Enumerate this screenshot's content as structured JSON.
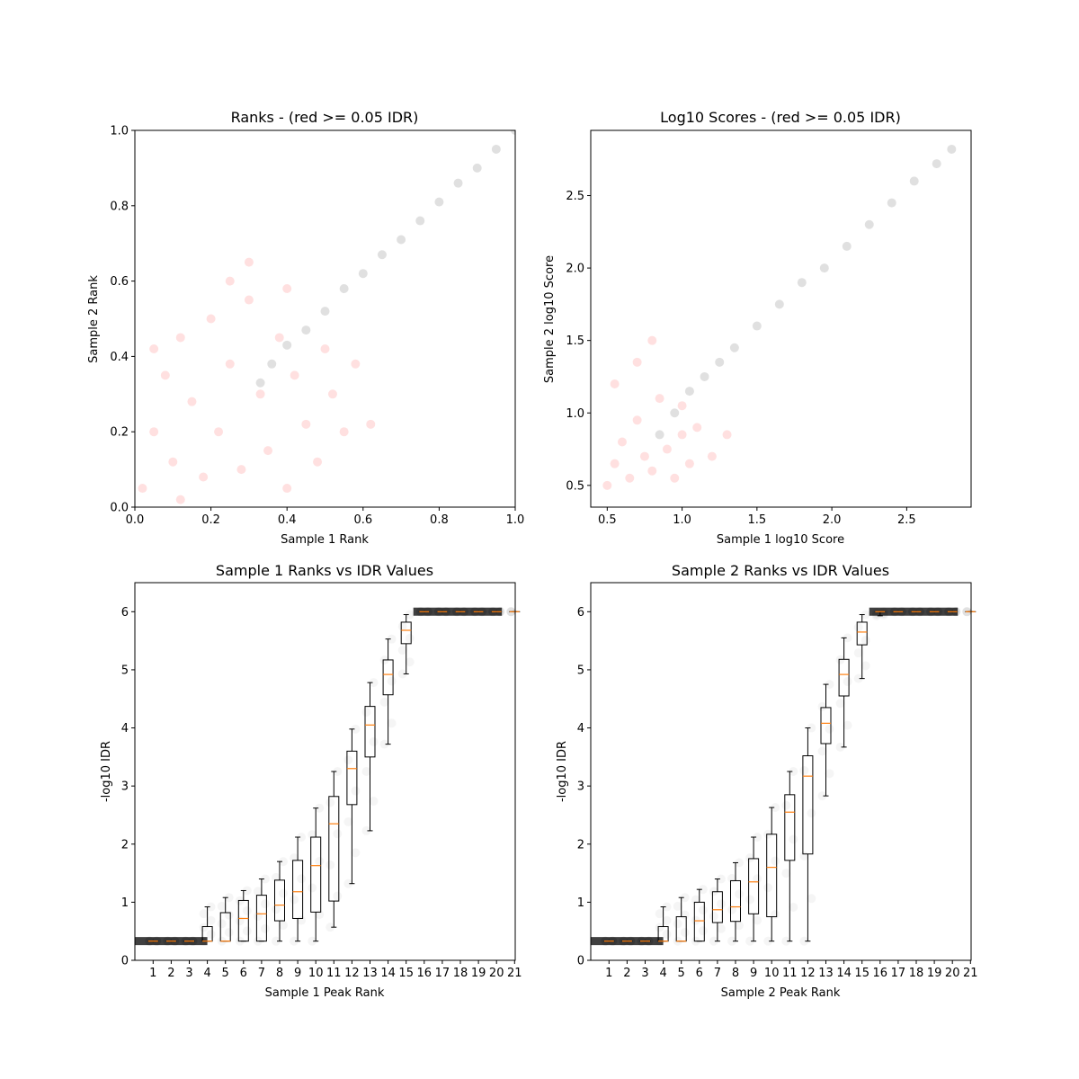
{
  "chart_data": [
    {
      "type": "scatter",
      "title": "Ranks - (red >= 0.05 IDR)",
      "xlabel": "Sample 1 Rank",
      "ylabel": "Sample 2 Rank",
      "xlim": [
        0,
        1
      ],
      "ylim": [
        0,
        1
      ],
      "xticks": [
        0.0,
        0.2,
        0.4,
        0.6,
        0.8,
        1.0
      ],
      "yticks": [
        0.0,
        0.2,
        0.4,
        0.6,
        0.8,
        1.0
      ],
      "tick_labels_x": [
        "0.0",
        "0.2",
        "0.4",
        "0.6",
        "0.8",
        "1.0"
      ],
      "tick_labels_y": [
        "0.0",
        "0.2",
        "0.4",
        "0.6",
        "0.8",
        "1.0"
      ],
      "grid": false,
      "series_colors": {
        "red_points": "#ff0000",
        "black_points": "#000000"
      },
      "series": [
        {
          "color": "#ff0000",
          "points": [
            [
              0.02,
              0.05
            ],
            [
              0.05,
              0.2
            ],
            [
              0.08,
              0.35
            ],
            [
              0.1,
              0.12
            ],
            [
              0.12,
              0.45
            ],
            [
              0.15,
              0.28
            ],
            [
              0.18,
              0.08
            ],
            [
              0.2,
              0.5
            ],
            [
              0.22,
              0.2
            ],
            [
              0.25,
              0.38
            ],
            [
              0.28,
              0.1
            ],
            [
              0.3,
              0.55
            ],
            [
              0.33,
              0.3
            ],
            [
              0.35,
              0.15
            ],
            [
              0.38,
              0.45
            ],
            [
              0.4,
              0.05
            ],
            [
              0.42,
              0.35
            ],
            [
              0.45,
              0.22
            ],
            [
              0.48,
              0.12
            ],
            [
              0.5,
              0.42
            ],
            [
              0.52,
              0.3
            ],
            [
              0.55,
              0.2
            ],
            [
              0.58,
              0.38
            ],
            [
              0.62,
              0.22
            ],
            [
              0.05,
              0.42
            ],
            [
              0.12,
              0.02
            ],
            [
              0.25,
              0.6
            ],
            [
              0.3,
              0.65
            ],
            [
              0.4,
              0.58
            ]
          ]
        },
        {
          "color": "#000000",
          "points": [
            [
              0.33,
              0.33
            ],
            [
              0.36,
              0.38
            ],
            [
              0.4,
              0.43
            ],
            [
              0.45,
              0.47
            ],
            [
              0.5,
              0.52
            ],
            [
              0.55,
              0.58
            ],
            [
              0.6,
              0.62
            ],
            [
              0.65,
              0.67
            ],
            [
              0.7,
              0.71
            ],
            [
              0.75,
              0.76
            ],
            [
              0.8,
              0.81
            ],
            [
              0.85,
              0.86
            ],
            [
              0.9,
              0.9
            ],
            [
              0.95,
              0.95
            ],
            [
              1.0,
              1.0
            ]
          ]
        }
      ]
    },
    {
      "type": "scatter",
      "title": "Log10 Scores - (red >= 0.05 IDR)",
      "xlabel": "Sample 1 log10 Score",
      "ylabel": "Sample 2 log10 Score",
      "xlim": [
        0.39,
        2.93
      ],
      "ylim": [
        0.35,
        2.95
      ],
      "xticks": [
        0.5,
        1.0,
        1.5,
        2.0,
        2.5
      ],
      "yticks": [
        0.5,
        1.0,
        1.5,
        2.0,
        2.5
      ],
      "tick_labels_x": [
        "0.5",
        "1.0",
        "1.5",
        "2.0",
        "2.5"
      ],
      "tick_labels_y": [
        "0.5",
        "1.0",
        "1.5",
        "2.0",
        "2.5"
      ],
      "grid": false,
      "series_colors": {
        "red_points": "#ff0000",
        "black_points": "#000000"
      },
      "series": [
        {
          "color": "#ff0000",
          "points": [
            [
              0.5,
              0.5
            ],
            [
              0.55,
              0.65
            ],
            [
              0.6,
              0.8
            ],
            [
              0.65,
              0.55
            ],
            [
              0.7,
              0.95
            ],
            [
              0.75,
              0.7
            ],
            [
              0.8,
              0.6
            ],
            [
              0.85,
              1.1
            ],
            [
              0.9,
              0.75
            ],
            [
              0.95,
              0.55
            ],
            [
              1.0,
              0.85
            ],
            [
              1.05,
              0.65
            ],
            [
              1.1,
              0.9
            ],
            [
              1.2,
              0.7
            ],
            [
              1.3,
              0.85
            ],
            [
              0.55,
              1.2
            ],
            [
              0.7,
              1.35
            ],
            [
              0.8,
              1.5
            ],
            [
              1.0,
              1.05
            ]
          ]
        },
        {
          "color": "#000000",
          "points": [
            [
              0.85,
              0.85
            ],
            [
              0.95,
              1.0
            ],
            [
              1.05,
              1.15
            ],
            [
              1.15,
              1.25
            ],
            [
              1.25,
              1.35
            ],
            [
              1.35,
              1.45
            ],
            [
              1.5,
              1.6
            ],
            [
              1.65,
              1.75
            ],
            [
              1.8,
              1.9
            ],
            [
              1.95,
              2.0
            ],
            [
              2.1,
              2.15
            ],
            [
              2.25,
              2.3
            ],
            [
              2.4,
              2.45
            ],
            [
              2.55,
              2.6
            ],
            [
              2.7,
              2.72
            ],
            [
              2.8,
              2.82
            ]
          ]
        }
      ]
    },
    {
      "type": "box",
      "title": "Sample 1 Ranks vs IDR Values",
      "xlabel": "Sample 1 Peak Rank",
      "ylabel": "-log10 IDR",
      "xlim": [
        0,
        21
      ],
      "ylim": [
        0,
        6.5
      ],
      "xticks": [
        "1",
        "2",
        "3",
        "4",
        "5",
        "6",
        "7",
        "8",
        "9",
        "10",
        "11",
        "12",
        "13",
        "14",
        "15",
        "16",
        "17",
        "18",
        "19",
        "20",
        "21"
      ],
      "yticks": [
        0,
        1,
        2,
        3,
        4,
        5,
        6
      ],
      "tick_labels_y": [
        "0",
        "1",
        "2",
        "3",
        "4",
        "5",
        "6"
      ],
      "grid": false,
      "boxes": [
        {
          "x": 1,
          "whislo": 0.33,
          "q1": 0.33,
          "med": 0.33,
          "q3": 0.33,
          "whishi": 0.33
        },
        {
          "x": 2,
          "whislo": 0.33,
          "q1": 0.33,
          "med": 0.33,
          "q3": 0.33,
          "whishi": 0.33
        },
        {
          "x": 3,
          "whislo": 0.33,
          "q1": 0.33,
          "med": 0.33,
          "q3": 0.33,
          "whishi": 0.33
        },
        {
          "x": 4,
          "whislo": 0.33,
          "q1": 0.33,
          "med": 0.33,
          "q3": 0.58,
          "whishi": 0.92
        },
        {
          "x": 5,
          "whislo": 0.33,
          "q1": 0.33,
          "med": 0.33,
          "q3": 0.82,
          "whishi": 1.08
        },
        {
          "x": 6,
          "whislo": 0.33,
          "q1": 0.33,
          "med": 0.72,
          "q3": 1.03,
          "whishi": 1.2
        },
        {
          "x": 7,
          "whislo": 0.33,
          "q1": 0.33,
          "med": 0.8,
          "q3": 1.12,
          "whishi": 1.4
        },
        {
          "x": 8,
          "whislo": 0.33,
          "q1": 0.68,
          "med": 0.95,
          "q3": 1.38,
          "whishi": 1.7
        },
        {
          "x": 9,
          "whislo": 0.33,
          "q1": 0.72,
          "med": 1.18,
          "q3": 1.72,
          "whishi": 2.12
        },
        {
          "x": 10,
          "whislo": 0.33,
          "q1": 0.83,
          "med": 1.63,
          "q3": 2.12,
          "whishi": 2.62
        },
        {
          "x": 11,
          "whislo": 0.57,
          "q1": 1.02,
          "med": 2.35,
          "q3": 2.82,
          "whishi": 3.25
        },
        {
          "x": 12,
          "whislo": 1.32,
          "q1": 2.68,
          "med": 3.3,
          "q3": 3.6,
          "whishi": 3.98
        },
        {
          "x": 13,
          "whislo": 2.23,
          "q1": 3.5,
          "med": 4.05,
          "q3": 4.37,
          "whishi": 4.78
        },
        {
          "x": 14,
          "whislo": 3.72,
          "q1": 4.57,
          "med": 4.92,
          "q3": 5.17,
          "whishi": 5.53
        },
        {
          "x": 15,
          "whislo": 4.93,
          "q1": 5.45,
          "med": 5.68,
          "q3": 5.82,
          "whishi": 5.95
        },
        {
          "x": 16,
          "whislo": 6.0,
          "q1": 6.0,
          "med": 6.0,
          "q3": 6.0,
          "whishi": 6.0
        },
        {
          "x": 17,
          "whislo": 6.0,
          "q1": 6.0,
          "med": 6.0,
          "q3": 6.0,
          "whishi": 6.0
        },
        {
          "x": 18,
          "whislo": 6.0,
          "q1": 6.0,
          "med": 6.0,
          "q3": 6.0,
          "whishi": 6.0
        },
        {
          "x": 19,
          "whislo": 6.0,
          "q1": 6.0,
          "med": 6.0,
          "q3": 6.0,
          "whishi": 6.0
        },
        {
          "x": 20,
          "whislo": 6.0,
          "q1": 6.0,
          "med": 6.0,
          "q3": 6.0,
          "whishi": 6.0
        },
        {
          "x": 21,
          "whislo": 6.0,
          "q1": 6.0,
          "med": 6.0,
          "q3": 6.0,
          "whishi": 6.0
        }
      ],
      "median_color": "#ff7f0e",
      "scatter_color": "#000000"
    },
    {
      "type": "box",
      "title": "Sample 2 Ranks vs IDR Values",
      "xlabel": "Sample 2 Peak Rank",
      "ylabel": "-log10 IDR",
      "xlim": [
        0,
        21
      ],
      "ylim": [
        0,
        6.5
      ],
      "xticks": [
        "1",
        "2",
        "3",
        "4",
        "5",
        "6",
        "7",
        "8",
        "9",
        "10",
        "11",
        "12",
        "13",
        "14",
        "15",
        "16",
        "17",
        "18",
        "19",
        "20",
        "21"
      ],
      "yticks": [
        0,
        1,
        2,
        3,
        4,
        5,
        6
      ],
      "tick_labels_y": [
        "0",
        "1",
        "2",
        "3",
        "4",
        "5",
        "6"
      ],
      "grid": false,
      "boxes": [
        {
          "x": 1,
          "whislo": 0.33,
          "q1": 0.33,
          "med": 0.33,
          "q3": 0.33,
          "whishi": 0.33
        },
        {
          "x": 2,
          "whislo": 0.33,
          "q1": 0.33,
          "med": 0.33,
          "q3": 0.33,
          "whishi": 0.33
        },
        {
          "x": 3,
          "whislo": 0.33,
          "q1": 0.33,
          "med": 0.33,
          "q3": 0.33,
          "whishi": 0.33
        },
        {
          "x": 4,
          "whislo": 0.33,
          "q1": 0.33,
          "med": 0.33,
          "q3": 0.58,
          "whishi": 0.92
        },
        {
          "x": 5,
          "whislo": 0.33,
          "q1": 0.33,
          "med": 0.33,
          "q3": 0.75,
          "whishi": 1.08
        },
        {
          "x": 6,
          "whislo": 0.33,
          "q1": 0.33,
          "med": 0.68,
          "q3": 1.0,
          "whishi": 1.22
        },
        {
          "x": 7,
          "whislo": 0.33,
          "q1": 0.65,
          "med": 0.87,
          "q3": 1.18,
          "whishi": 1.4
        },
        {
          "x": 8,
          "whislo": 0.33,
          "q1": 0.67,
          "med": 0.92,
          "q3": 1.37,
          "whishi": 1.68
        },
        {
          "x": 9,
          "whislo": 0.33,
          "q1": 0.8,
          "med": 1.35,
          "q3": 1.75,
          "whishi": 2.12
        },
        {
          "x": 10,
          "whislo": 0.33,
          "q1": 0.75,
          "med": 1.6,
          "q3": 2.17,
          "whishi": 2.63
        },
        {
          "x": 11,
          "whislo": 0.33,
          "q1": 1.72,
          "med": 2.55,
          "q3": 2.85,
          "whishi": 3.25
        },
        {
          "x": 12,
          "whislo": 0.33,
          "q1": 1.83,
          "med": 3.17,
          "q3": 3.52,
          "whishi": 4.0
        },
        {
          "x": 13,
          "whislo": 2.83,
          "q1": 3.73,
          "med": 4.08,
          "q3": 4.35,
          "whishi": 4.75
        },
        {
          "x": 14,
          "whislo": 3.67,
          "q1": 4.55,
          "med": 4.92,
          "q3": 5.18,
          "whishi": 5.55
        },
        {
          "x": 15,
          "whislo": 4.85,
          "q1": 5.43,
          "med": 5.65,
          "q3": 5.82,
          "whishi": 5.95
        },
        {
          "x": 16,
          "whislo": 5.93,
          "q1": 6.0,
          "med": 6.0,
          "q3": 6.0,
          "whishi": 6.0
        },
        {
          "x": 17,
          "whislo": 6.0,
          "q1": 6.0,
          "med": 6.0,
          "q3": 6.0,
          "whishi": 6.0
        },
        {
          "x": 18,
          "whislo": 6.0,
          "q1": 6.0,
          "med": 6.0,
          "q3": 6.0,
          "whishi": 6.0
        },
        {
          "x": 19,
          "whislo": 6.0,
          "q1": 6.0,
          "med": 6.0,
          "q3": 6.0,
          "whishi": 6.0
        },
        {
          "x": 20,
          "whislo": 6.0,
          "q1": 6.0,
          "med": 6.0,
          "q3": 6.0,
          "whishi": 6.0
        },
        {
          "x": 21,
          "whislo": 6.0,
          "q1": 6.0,
          "med": 6.0,
          "q3": 6.0,
          "whishi": 6.0
        }
      ],
      "median_color": "#ff7f0e",
      "scatter_color": "#000000"
    }
  ]
}
